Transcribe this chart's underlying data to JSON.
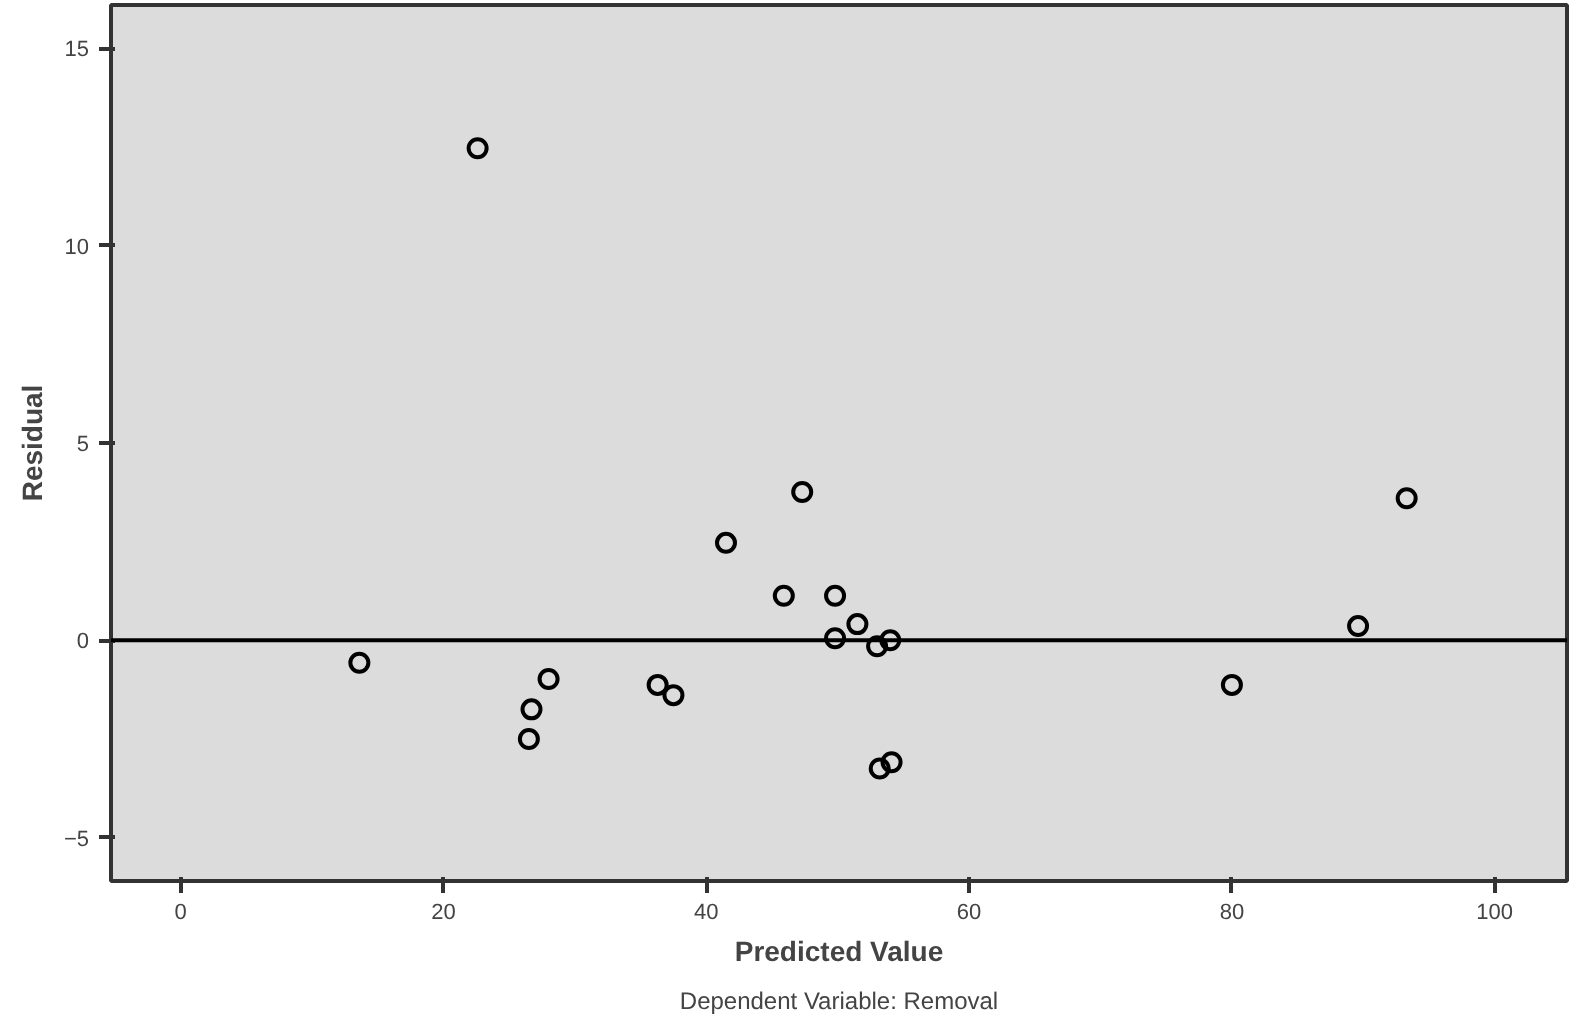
{
  "chart_data": {
    "type": "scatter",
    "xlabel": "Predicted Value",
    "ylabel": "Residual",
    "annotations": [
      "Dependent Variable: Removal"
    ],
    "x": [
      13.6,
      22.6,
      26.7,
      26.5,
      28.0,
      36.3,
      37.5,
      41.5,
      45.9,
      47.3,
      49.8,
      49.8,
      51.5,
      53.0,
      54.0,
      53.2,
      54.1,
      80.0,
      89.6,
      93.3
    ],
    "series": [
      {
        "color": "#000000",
        "values": [
          -0.57,
          12.47,
          -1.75,
          -2.5,
          -0.98,
          -1.13,
          -1.39,
          2.47,
          1.13,
          3.76,
          1.13,
          0.05,
          0.41,
          -0.15,
          0.0,
          -3.25,
          -3.09,
          -1.13,
          0.36,
          3.6
        ]
      }
    ],
    "marker": "circle",
    "xlim": [
      -5.3,
      105.5
    ],
    "ylim": [
      -6.1,
      16.1
    ],
    "xticks": [
      0,
      20,
      40,
      60,
      80,
      100
    ],
    "yticks": [
      -5,
      0,
      5,
      10,
      15
    ],
    "grid": false,
    "ref_lines": [
      {
        "axis": "y",
        "value": 0,
        "color": "#000000"
      }
    ]
  }
}
